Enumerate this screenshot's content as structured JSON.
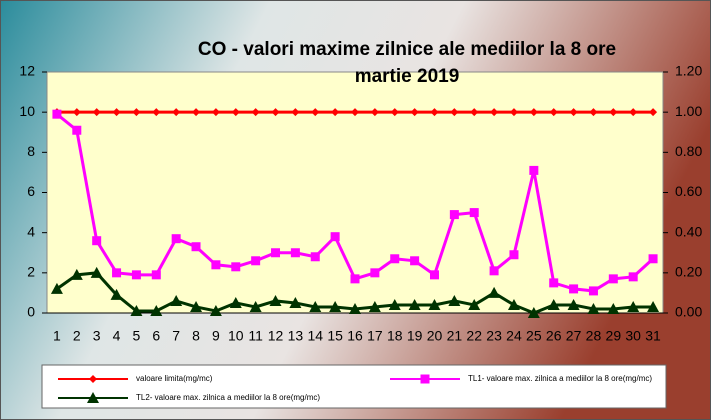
{
  "chart_data": {
    "type": "line",
    "title": "CO - valori maxime zilnice ale mediilor la 8 ore",
    "subtitle": "martie  2019",
    "categories": [
      "1",
      "2",
      "3",
      "4",
      "5",
      "6",
      "7",
      "8",
      "9",
      "10",
      "11",
      "12",
      "13",
      "14",
      "15",
      "16",
      "17",
      "18",
      "19",
      "20",
      "21",
      "22",
      "23",
      "24",
      "25",
      "26",
      "27",
      "28",
      "29",
      "30",
      "31"
    ],
    "series": [
      {
        "name": "valoare limita(mg/mc)",
        "color": "#ff0000",
        "marker": "diamond",
        "values": [
          10,
          10,
          10,
          10,
          10,
          10,
          10,
          10,
          10,
          10,
          10,
          10,
          10,
          10,
          10,
          10,
          10,
          10,
          10,
          10,
          10,
          10,
          10,
          10,
          10,
          10,
          10,
          10,
          10,
          10,
          10
        ]
      },
      {
        "name": "TL1- valoare max. zilnica a mediilor la 8 ore(mg/mc)",
        "color": "#ff00ff",
        "marker": "square",
        "values": [
          9.9,
          9.1,
          3.6,
          2.0,
          1.9,
          1.9,
          3.7,
          3.3,
          2.4,
          2.3,
          2.6,
          3.0,
          3.0,
          2.8,
          3.8,
          1.7,
          2.0,
          2.7,
          2.6,
          1.9,
          4.9,
          5.0,
          2.1,
          2.9,
          7.1,
          1.5,
          1.2,
          1.1,
          1.7,
          1.8,
          2.7
        ]
      },
      {
        "name": "TL2- valoare max. zilnica a mediilor la 8 ore(mg/mc)",
        "color": "#003300",
        "marker": "triangle",
        "values": [
          1.2,
          1.9,
          2.0,
          0.9,
          0.1,
          0.1,
          0.6,
          0.3,
          0.1,
          0.5,
          0.3,
          0.6,
          0.5,
          0.3,
          0.3,
          0.2,
          0.3,
          0.4,
          0.4,
          0.4,
          0.6,
          0.4,
          1.0,
          0.4,
          0.0,
          0.4,
          0.4,
          0.2,
          0.2,
          0.3,
          0.3
        ]
      }
    ],
    "ylim": [
      0,
      12
    ],
    "yticks": [
      0,
      2,
      4,
      6,
      8,
      10,
      12
    ],
    "y2lim": [
      0,
      1.2
    ],
    "y2ticks": [
      {
        "value": 0,
        "label": "0.00"
      },
      {
        "value": 0.2,
        "label": "0.20"
      },
      {
        "value": 0.4,
        "label": "0.40"
      },
      {
        "value": 0.6,
        "label": "0.60"
      },
      {
        "value": 0.8,
        "label": "0.80"
      },
      {
        "value": 1,
        "label": "1.00"
      },
      {
        "value": 1.2,
        "label": "1.20"
      }
    ],
    "grid": false,
    "legend": "bottom"
  }
}
